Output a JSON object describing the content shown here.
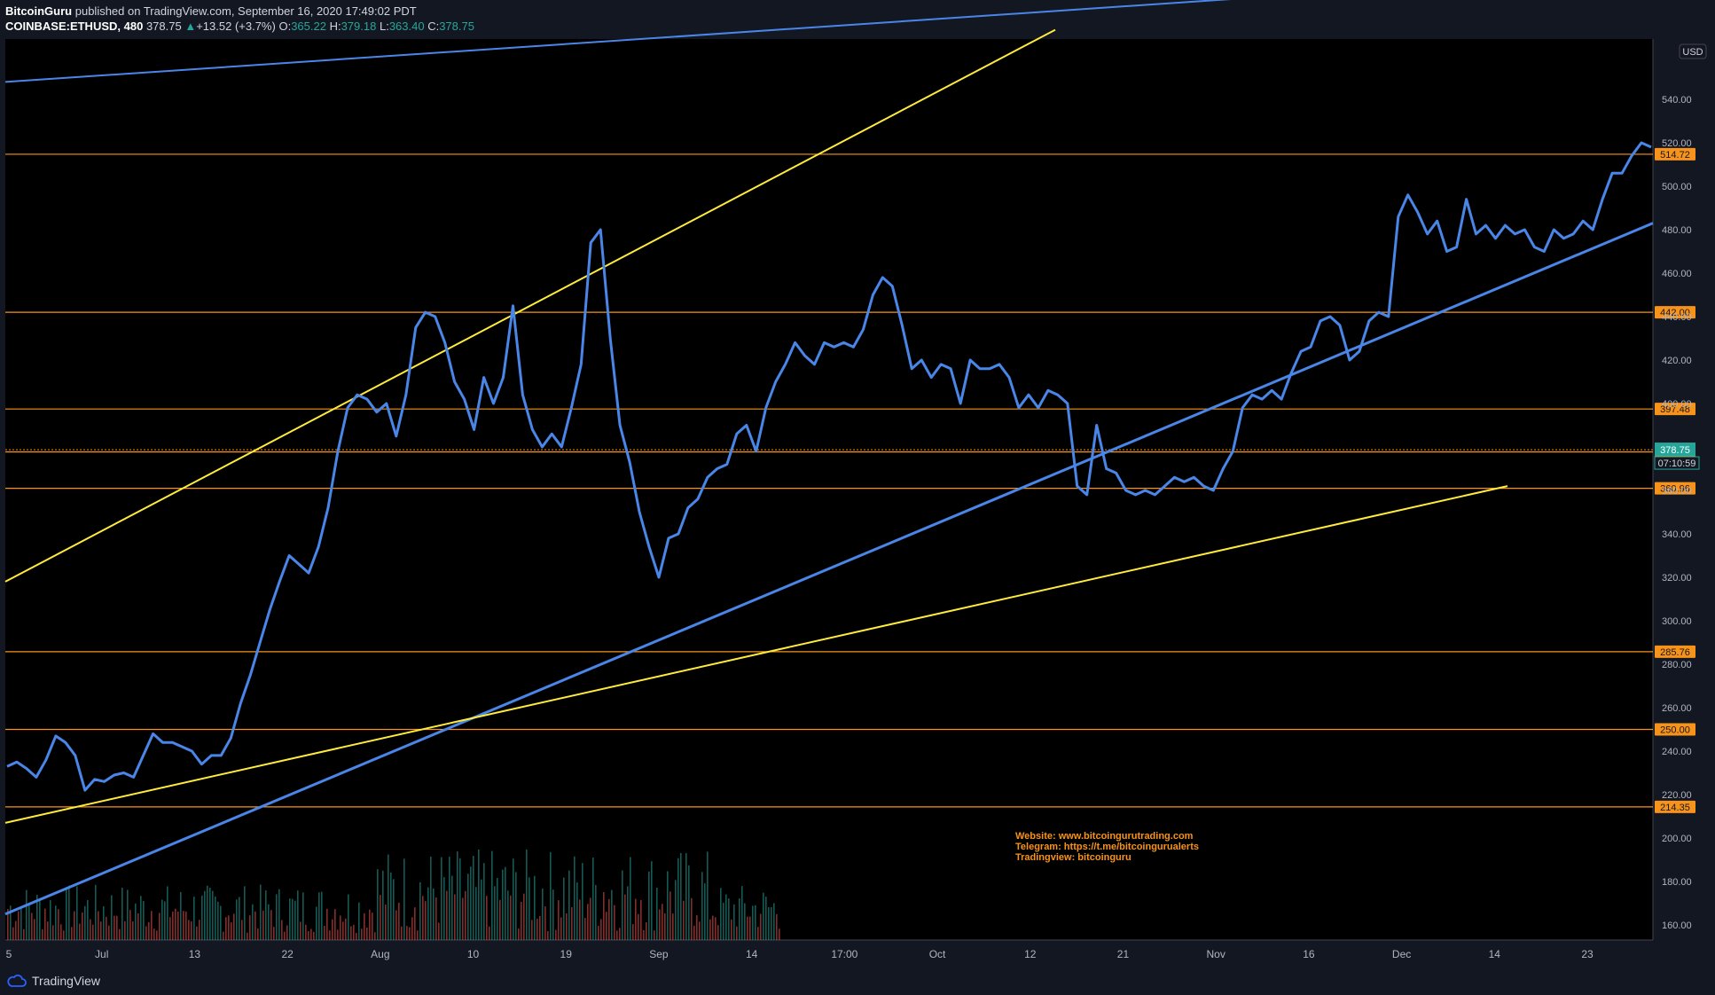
{
  "header": {
    "author": "BitcoinGuru",
    "published": "published on TradingView.com, September 16, 2020 17:49:02 PDT",
    "symbol": "COINBASE:ETHUSD, 480",
    "last": "378.75",
    "change": "+13.52 (+3.7%)",
    "o_label": "O:",
    "o_value": "365.22",
    "h_label": "H:",
    "h_value": "379.18",
    "l_label": "L:",
    "l_value": "363.40",
    "c_label": "C:",
    "c_value": "378.75"
  },
  "footer": {
    "brand": "TradingView"
  },
  "currency": "USD",
  "countdown": "07:10:59",
  "watermark": [
    "Website: www.bitcoingurutrading.com",
    "Telegram: https://t.me/bitcoingurualerts",
    "Tradingview: bitcoinguru"
  ],
  "colors": {
    "background": "#000000",
    "price": "#4a86e8",
    "level": "#f7931a",
    "yellow_trend": "#ffeb3b",
    "blue_trend": "#4a86e8",
    "current": "#26a69a"
  },
  "chart_data": {
    "type": "line",
    "title": "",
    "ylim": [
      150,
      565
    ],
    "y_ticks": [
      160,
      180,
      200,
      220,
      240,
      260,
      280,
      300,
      320,
      340,
      360,
      380,
      400,
      420,
      440,
      460,
      480,
      500,
      520,
      540
    ],
    "x_ticks": [
      "5",
      "Jul",
      "13",
      "22",
      "Aug",
      "10",
      "19",
      "Sep",
      "14",
      "17:00",
      "Oct",
      "12",
      "21",
      "Nov",
      "16",
      "Dec",
      "14",
      "23"
    ],
    "grid": false,
    "levels": [
      514.72,
      442.0,
      397.48,
      377.7,
      360.96,
      285.76,
      250.0,
      214.35
    ],
    "current_price": 378.75,
    "series": [
      {
        "values": [
          233,
          235,
          232,
          228,
          236,
          247,
          244,
          238,
          222,
          227,
          226,
          229,
          230,
          228,
          238,
          248,
          244,
          244,
          242,
          240,
          234,
          238,
          238,
          246,
          262,
          275,
          290,
          305,
          318,
          330,
          326,
          322,
          334,
          352,
          378,
          398,
          404,
          402,
          396,
          400,
          385,
          404,
          435,
          442,
          440,
          428,
          410,
          402,
          388,
          412,
          400,
          412,
          445,
          404,
          388,
          380,
          386,
          380,
          398,
          418,
          474,
          480,
          430,
          390,
          373,
          350,
          334,
          320,
          338,
          340,
          352,
          356,
          366,
          370,
          372,
          386,
          390,
          378,
          398,
          410,
          418,
          428,
          422,
          418,
          428,
          426,
          428,
          426,
          434,
          450,
          458,
          454,
          436,
          416,
          420,
          412,
          418,
          416,
          400,
          420,
          416,
          416,
          418,
          412,
          398,
          404,
          398,
          406,
          404,
          400,
          362,
          358,
          390,
          370,
          368,
          360,
          358,
          360,
          358,
          362,
          366,
          364,
          366,
          362,
          360,
          370,
          378,
          398,
          404,
          402,
          406,
          402,
          414,
          424,
          426,
          438,
          440,
          436,
          420,
          424,
          438,
          442,
          440,
          486,
          496,
          488,
          478,
          484,
          470,
          472,
          494,
          478,
          482,
          476,
          482,
          478,
          480,
          472,
          470,
          480,
          476,
          478,
          484,
          480,
          494,
          506,
          506,
          514,
          520,
          518
        ]
      }
    ]
  }
}
